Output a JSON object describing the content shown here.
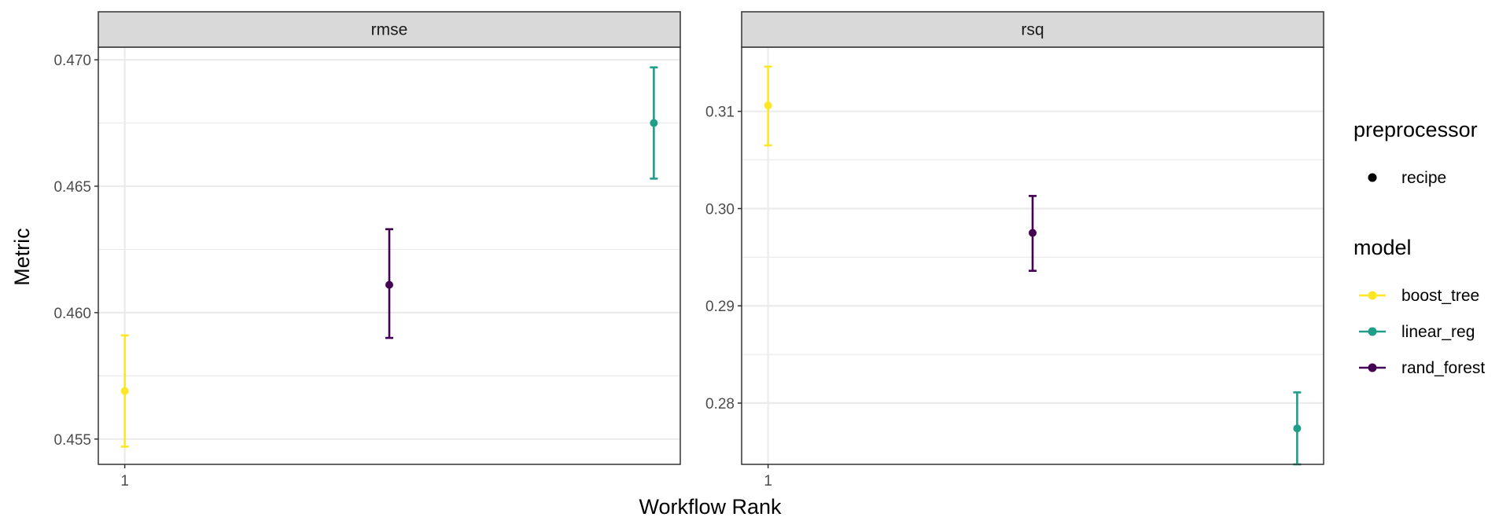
{
  "chart_data": {
    "type": "scatter",
    "xlabel": "Workflow Rank",
    "ylabel": "Metric",
    "x_tick_labels": [
      "1"
    ],
    "grid": true,
    "legend_placement": "right",
    "colors": {
      "boost_tree": "#fde725",
      "linear_reg": "#1f9e89",
      "rand_forest": "#440154"
    },
    "panels": [
      {
        "strip_label": "rmse",
        "ylim": [
          0.454,
          0.4705
        ],
        "y_ticks": [
          0.455,
          0.46,
          0.465,
          0.47
        ],
        "y_tick_labels": [
          "0.455",
          "0.460",
          "0.465",
          "0.470"
        ],
        "xlim": [
          0.9,
          3.1
        ],
        "points": [
          {
            "model": "boost_tree",
            "rank": 1,
            "value": 0.4569,
            "lower": 0.4547,
            "upper": 0.4591
          },
          {
            "model": "rand_forest",
            "rank": 2,
            "value": 0.4611,
            "lower": 0.459,
            "upper": 0.4633
          },
          {
            "model": "linear_reg",
            "rank": 3,
            "value": 0.4675,
            "lower": 0.4653,
            "upper": 0.4697
          }
        ]
      },
      {
        "strip_label": "rsq",
        "ylim": [
          0.2737,
          0.3166
        ],
        "y_ticks": [
          0.28,
          0.29,
          0.3,
          0.31
        ],
        "y_tick_labels": [
          "0.28",
          "0.29",
          "0.30",
          "0.31"
        ],
        "xlim": [
          0.9,
          3.1
        ],
        "points": [
          {
            "model": "boost_tree",
            "rank": 1,
            "value": 0.3106,
            "lower": 0.3065,
            "upper": 0.3146
          },
          {
            "model": "rand_forest",
            "rank": 2,
            "value": 0.2975,
            "lower": 0.2936,
            "upper": 0.3013
          },
          {
            "model": "linear_reg",
            "rank": 3,
            "value": 0.2774,
            "lower": 0.2737,
            "upper": 0.2811
          }
        ]
      }
    ],
    "legend": {
      "groups": [
        {
          "title": "preprocessor",
          "entries": [
            {
              "label": "recipe",
              "color": "#000000",
              "line": false
            }
          ]
        },
        {
          "title": "model",
          "entries": [
            {
              "label": "boost_tree",
              "color": "#fde725",
              "line": true
            },
            {
              "label": "linear_reg",
              "color": "#1f9e89",
              "line": true
            },
            {
              "label": "rand_forest",
              "color": "#440154",
              "line": true
            }
          ]
        }
      ]
    }
  }
}
